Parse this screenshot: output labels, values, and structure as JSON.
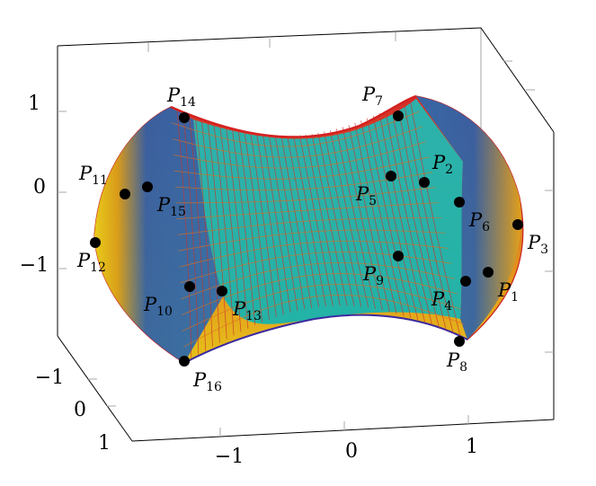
{
  "axes": {
    "x_ticks": [
      "−1",
      "0",
      "1"
    ],
    "y_ticks": [
      "−1",
      "0",
      "1"
    ],
    "z_ticks": [
      "1",
      "0",
      "−1"
    ]
  },
  "points": [
    {
      "id": "P1",
      "letter": "P",
      "sub": "1"
    },
    {
      "id": "P2",
      "letter": "P",
      "sub": "2"
    },
    {
      "id": "P3",
      "letter": "P",
      "sub": "3"
    },
    {
      "id": "P4",
      "letter": "P",
      "sub": "4"
    },
    {
      "id": "P5",
      "letter": "P",
      "sub": "5"
    },
    {
      "id": "P6",
      "letter": "P",
      "sub": "6"
    },
    {
      "id": "P7",
      "letter": "P",
      "sub": "7"
    },
    {
      "id": "P8",
      "letter": "P",
      "sub": "8"
    },
    {
      "id": "P9",
      "letter": "P",
      "sub": "9"
    },
    {
      "id": "P10",
      "letter": "P",
      "sub": "10"
    },
    {
      "id": "P11",
      "letter": "P",
      "sub": "11"
    },
    {
      "id": "P12",
      "letter": "P",
      "sub": "12"
    },
    {
      "id": "P13",
      "letter": "P",
      "sub": "13"
    },
    {
      "id": "P14",
      "letter": "P",
      "sub": "14"
    },
    {
      "id": "P15",
      "letter": "P",
      "sub": "15"
    },
    {
      "id": "P16",
      "letter": "P",
      "sub": "16"
    }
  ],
  "colors": {
    "front_face": "#1fb5b0",
    "left_face": "#2a6db0",
    "right_face": "#2a6db0",
    "mesh_top": "#d42a2a",
    "mesh_bottom": "#e6c21a",
    "left_rim": "#e9d21a",
    "box": "#000000",
    "point": "#000000"
  }
}
